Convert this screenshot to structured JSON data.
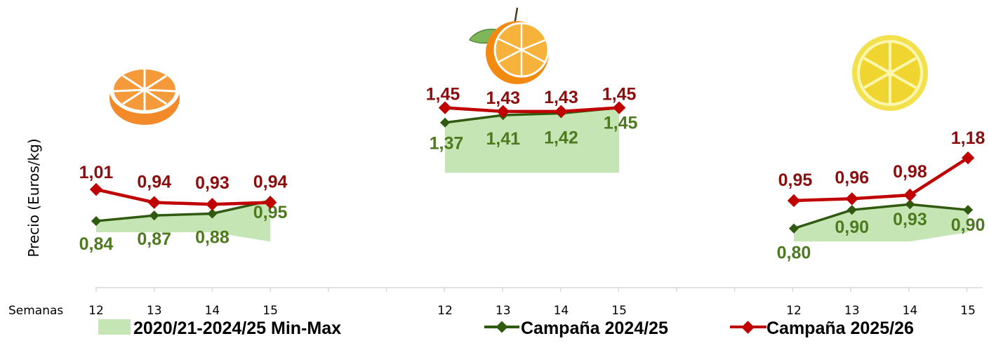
{
  "chart_data": {
    "type": "line",
    "ylabel": "Precio (Euros/kg)",
    "xlabel": "Semanas",
    "categories": [
      "12",
      "13",
      "14",
      "15"
    ],
    "colors": {
      "range": "#c6e5b4",
      "campana_2425": "#2f5a0f",
      "campana_2526": "#c00000"
    },
    "legend": {
      "position": "bottom",
      "range_label": "2020/21-2024/25 Min-Max",
      "series_2425_label": "Campaña 2024/25",
      "series_2526_label": "Campaña 2025/26"
    },
    "panels": [
      {
        "fruit_icon": "orange-half-icon",
        "range_min": [
          0.78,
          0.78,
          0.78,
          0.73
        ],
        "range_max": [
          0.84,
          0.87,
          0.88,
          0.95
        ],
        "series_2425": {
          "values": [
            0.84,
            0.87,
            0.88,
            0.95
          ],
          "labels": [
            "0,84",
            "0,87",
            "0,88",
            "0,95"
          ]
        },
        "series_2526": {
          "values": [
            1.01,
            0.94,
            0.93,
            0.94
          ],
          "labels": [
            "1,01",
            "0,94",
            "0,93",
            "0,94"
          ]
        }
      },
      {
        "fruit_icon": "mandarin-icon",
        "range_min": [
          1.1,
          1.1,
          1.1,
          1.1
        ],
        "range_max": [
          1.37,
          1.41,
          1.42,
          1.45
        ],
        "series_2425": {
          "values": [
            1.37,
            1.41,
            1.42,
            1.45
          ],
          "labels": [
            "1,37",
            "1,41",
            "1,42",
            "1,45"
          ]
        },
        "series_2526": {
          "values": [
            1.45,
            1.43,
            1.43,
            1.45
          ],
          "labels": [
            "1,45",
            "1,43",
            "1,43",
            "1,45"
          ]
        }
      },
      {
        "fruit_icon": "lemon-slice-icon",
        "range_min": [
          0.73,
          0.73,
          0.73,
          0.78
        ],
        "range_max": [
          0.8,
          0.9,
          0.93,
          0.9
        ],
        "series_2425": {
          "values": [
            0.8,
            0.9,
            0.93,
            0.9
          ],
          "labels": [
            "0,80",
            "0,90",
            "0,93",
            "0,90"
          ]
        },
        "series_2526": {
          "values": [
            0.95,
            0.96,
            0.98,
            1.18
          ],
          "labels": [
            "0,95",
            "0,96",
            "0,98",
            "1,18"
          ]
        }
      }
    ]
  }
}
